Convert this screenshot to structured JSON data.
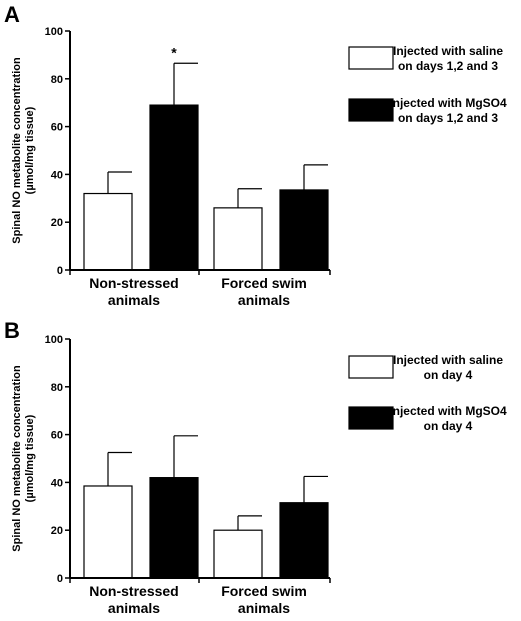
{
  "chart_data": [
    {
      "type": "bar",
      "panel_label": "A",
      "ylabel_lines": [
        "Spinal NO metabolite concentration",
        "(µmol/mg tissue)"
      ],
      "ylim": [
        0,
        100
      ],
      "yticks": [
        0,
        20,
        40,
        60,
        80,
        100
      ],
      "categories": [
        [
          "Non-stressed",
          "animals"
        ],
        [
          "Forced swim",
          "animals"
        ]
      ],
      "series": [
        {
          "name_lines": [
            "Injected with saline",
            "on days 1,2 and 3"
          ],
          "color": "#ffffff",
          "values": [
            32,
            26
          ],
          "errors": [
            9,
            8
          ]
        },
        {
          "name_lines": [
            "Injected with MgSO4",
            "on days 1,2 and 3"
          ],
          "color": "#000000",
          "values": [
            69,
            33.5
          ],
          "errors": [
            17.5,
            10.5
          ]
        }
      ],
      "annotations": [
        {
          "text": "*",
          "category": 0,
          "series": 1
        }
      ]
    },
    {
      "type": "bar",
      "panel_label": "B",
      "ylabel_lines": [
        "Spinal NO metabolite concentration",
        "(µmol/mg tissue)"
      ],
      "ylim": [
        0,
        100
      ],
      "yticks": [
        0,
        20,
        40,
        60,
        80,
        100
      ],
      "categories": [
        [
          "Non-stressed",
          "animals"
        ],
        [
          "Forced swim",
          "animals"
        ]
      ],
      "series": [
        {
          "name_lines": [
            "Injected with saline",
            "on day 4"
          ],
          "color": "#ffffff",
          "values": [
            38.5,
            20
          ],
          "errors": [
            14,
            6
          ]
        },
        {
          "name_lines": [
            "Injected with MgSO4",
            "on day 4"
          ],
          "color": "#000000",
          "values": [
            42,
            31.5
          ],
          "errors": [
            17.5,
            11
          ]
        }
      ],
      "annotations": []
    }
  ]
}
